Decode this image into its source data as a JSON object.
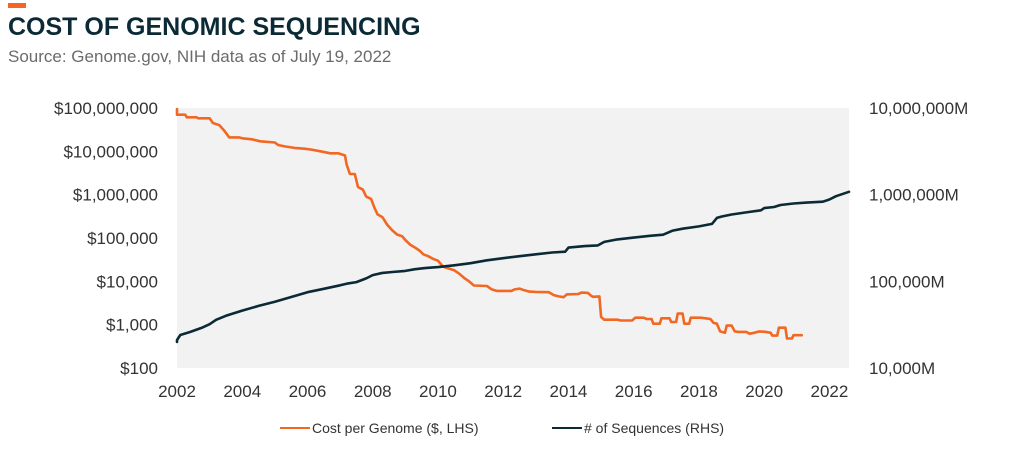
{
  "header": {
    "title": "COST OF GENOMIC SEQUENCING",
    "subtitle": "Source: Genome.gov, NIH data as of July 19, 2022"
  },
  "colors": {
    "accent": "#f26722",
    "cost_series": "#f26722",
    "sequences_series": "#0b2a35",
    "plot_background": "#f2f2f2"
  },
  "legend": {
    "placement": "bottom-center",
    "items": [
      {
        "label": "Cost per Genome ($, LHS)",
        "color": "#f26722"
      },
      {
        "label": "# of Sequences (RHS)",
        "color": "#0b2a35"
      }
    ]
  },
  "chart_data": {
    "type": "line",
    "title": "COST OF GENOMIC SEQUENCING",
    "subtitle": "Source: Genome.gov, NIH data as of July 19, 2022",
    "xlabel": "",
    "ylabel": "",
    "xlim": [
      2002,
      2022.6
    ],
    "x_ticks": [
      2002,
      2004,
      2006,
      2008,
      2010,
      2012,
      2014,
      2016,
      2018,
      2020,
      2022
    ],
    "grid": false,
    "legend_position": "bottom-center",
    "y_left": {
      "scale": "log",
      "ylim": [
        100,
        100000000
      ],
      "ticks": [
        100,
        1000,
        10000,
        100000,
        1000000,
        10000000,
        100000000
      ],
      "tick_labels": [
        "$100",
        "$1,000",
        "$10,000",
        "$100,000",
        "$1,000,000",
        "$10,000,000",
        "$100,000,000"
      ]
    },
    "y_right": {
      "scale": "log",
      "ylim": [
        10000,
        10000000
      ],
      "ticks": [
        10000,
        100000,
        1000000,
        10000000
      ],
      "tick_labels": [
        "10,000M",
        "100,000M",
        "1,000,000M",
        "10,000,000M"
      ]
    },
    "series": [
      {
        "name": "Cost per Genome ($, LHS)",
        "axis": "left",
        "color": "#f26722",
        "points": [
          [
            2001.75,
            95000000
          ],
          [
            2001.85,
            70000000
          ],
          [
            2002.25,
            70000000
          ],
          [
            2002.3,
            61000000
          ],
          [
            2002.6,
            61000000
          ],
          [
            2002.65,
            58000000
          ],
          [
            2003.0,
            58000000
          ],
          [
            2003.1,
            45000000
          ],
          [
            2003.3,
            40000000
          ],
          [
            2003.45,
            30000000
          ],
          [
            2003.6,
            21000000
          ],
          [
            2003.9,
            21000000
          ],
          [
            2004.0,
            20000000
          ],
          [
            2004.3,
            19000000
          ],
          [
            2004.55,
            17000000
          ],
          [
            2005.0,
            16000000
          ],
          [
            2005.1,
            14000000
          ],
          [
            2005.3,
            13000000
          ],
          [
            2005.6,
            12000000
          ],
          [
            2005.9,
            11500000
          ],
          [
            2006.1,
            11000000
          ],
          [
            2006.4,
            10000000
          ],
          [
            2006.7,
            9000000
          ],
          [
            2006.95,
            9000000
          ],
          [
            2007.05,
            8500000
          ],
          [
            2007.15,
            8000000
          ],
          [
            2007.2,
            5000000
          ],
          [
            2007.3,
            3000000
          ],
          [
            2007.45,
            3000000
          ],
          [
            2007.55,
            1500000
          ],
          [
            2007.7,
            1300000
          ],
          [
            2007.8,
            900000
          ],
          [
            2007.95,
            800000
          ],
          [
            2008.05,
            500000
          ],
          [
            2008.15,
            350000
          ],
          [
            2008.3,
            300000
          ],
          [
            2008.45,
            200000
          ],
          [
            2008.6,
            150000
          ],
          [
            2008.75,
            120000
          ],
          [
            2008.9,
            110000
          ],
          [
            2009.0,
            90000
          ],
          [
            2009.15,
            70000
          ],
          [
            2009.3,
            60000
          ],
          [
            2009.45,
            50000
          ],
          [
            2009.55,
            42000
          ],
          [
            2009.7,
            38000
          ],
          [
            2009.85,
            33000
          ],
          [
            2010.0,
            30000
          ],
          [
            2010.15,
            22000
          ],
          [
            2010.3,
            20000
          ],
          [
            2010.5,
            18000
          ],
          [
            2010.65,
            15000
          ],
          [
            2010.8,
            12000
          ],
          [
            2010.95,
            10000
          ],
          [
            2011.1,
            8000
          ],
          [
            2011.5,
            7800
          ],
          [
            2011.65,
            6500
          ],
          [
            2011.8,
            6000
          ],
          [
            2012.25,
            6000
          ],
          [
            2012.35,
            6500
          ],
          [
            2012.5,
            6800
          ],
          [
            2012.65,
            6200
          ],
          [
            2012.8,
            5800
          ],
          [
            2013.0,
            5700
          ],
          [
            2013.4,
            5600
          ],
          [
            2013.55,
            4800
          ],
          [
            2013.7,
            4500
          ],
          [
            2013.85,
            4300
          ],
          [
            2013.95,
            5000
          ],
          [
            2014.3,
            5100
          ],
          [
            2014.4,
            5500
          ],
          [
            2014.6,
            5400
          ],
          [
            2014.7,
            4600
          ],
          [
            2014.75,
            4400
          ],
          [
            2014.95,
            4500
          ],
          [
            2015.0,
            1500
          ],
          [
            2015.1,
            1300
          ],
          [
            2015.5,
            1300
          ],
          [
            2015.6,
            1250
          ],
          [
            2015.95,
            1250
          ],
          [
            2016.05,
            1450
          ],
          [
            2016.3,
            1450
          ],
          [
            2016.4,
            1350
          ],
          [
            2016.55,
            1350
          ],
          [
            2016.6,
            1050
          ],
          [
            2016.8,
            1050
          ],
          [
            2016.85,
            1400
          ],
          [
            2017.1,
            1400
          ],
          [
            2017.15,
            1150
          ],
          [
            2017.3,
            1150
          ],
          [
            2017.35,
            1800
          ],
          [
            2017.5,
            1800
          ],
          [
            2017.55,
            1050
          ],
          [
            2017.7,
            1050
          ],
          [
            2017.75,
            1450
          ],
          [
            2018.05,
            1450
          ],
          [
            2018.2,
            1400
          ],
          [
            2018.35,
            1350
          ],
          [
            2018.45,
            1100
          ],
          [
            2018.55,
            1050
          ],
          [
            2018.65,
            700
          ],
          [
            2018.8,
            650
          ],
          [
            2018.85,
            950
          ],
          [
            2019.0,
            950
          ],
          [
            2019.1,
            700
          ],
          [
            2019.2,
            680
          ],
          [
            2019.45,
            680
          ],
          [
            2019.55,
            620
          ],
          [
            2019.7,
            650
          ],
          [
            2019.85,
            700
          ],
          [
            2020.05,
            680
          ],
          [
            2020.2,
            650
          ],
          [
            2020.25,
            560
          ],
          [
            2020.4,
            560
          ],
          [
            2020.45,
            850
          ],
          [
            2020.65,
            850
          ],
          [
            2020.7,
            480
          ],
          [
            2020.85,
            480
          ],
          [
            2020.9,
            570
          ],
          [
            2021.15,
            570
          ]
        ]
      },
      {
        "name": "# of Sequences (RHS)",
        "axis": "right",
        "color": "#0b2a35",
        "points": [
          [
            2001.75,
            20000
          ],
          [
            2002.0,
            21000
          ],
          [
            2002.1,
            24000
          ],
          [
            2002.4,
            26000
          ],
          [
            2002.75,
            29000
          ],
          [
            2003.0,
            32000
          ],
          [
            2003.2,
            36000
          ],
          [
            2003.5,
            40000
          ],
          [
            2004.0,
            46000
          ],
          [
            2004.5,
            52000
          ],
          [
            2005.0,
            58000
          ],
          [
            2005.5,
            66000
          ],
          [
            2006.0,
            75000
          ],
          [
            2006.5,
            82000
          ],
          [
            2007.0,
            90000
          ],
          [
            2007.2,
            94000
          ],
          [
            2007.5,
            98000
          ],
          [
            2007.8,
            108000
          ],
          [
            2008.0,
            118000
          ],
          [
            2008.3,
            125000
          ],
          [
            2008.6,
            128000
          ],
          [
            2009.0,
            132000
          ],
          [
            2009.3,
            138000
          ],
          [
            2009.6,
            142000
          ],
          [
            2010.0,
            146000
          ],
          [
            2010.5,
            153000
          ],
          [
            2011.0,
            162000
          ],
          [
            2011.5,
            175000
          ],
          [
            2012.0,
            185000
          ],
          [
            2012.5,
            195000
          ],
          [
            2013.0,
            205000
          ],
          [
            2013.5,
            215000
          ],
          [
            2013.9,
            220000
          ],
          [
            2014.0,
            245000
          ],
          [
            2014.5,
            255000
          ],
          [
            2014.9,
            260000
          ],
          [
            2015.1,
            285000
          ],
          [
            2015.5,
            305000
          ],
          [
            2016.0,
            320000
          ],
          [
            2016.5,
            335000
          ],
          [
            2016.9,
            345000
          ],
          [
            2017.2,
            385000
          ],
          [
            2017.5,
            405000
          ],
          [
            2018.0,
            430000
          ],
          [
            2018.4,
            460000
          ],
          [
            2018.55,
            540000
          ],
          [
            2018.7,
            560000
          ],
          [
            2019.0,
            590000
          ],
          [
            2019.5,
            630000
          ],
          [
            2019.9,
            660000
          ],
          [
            2020.0,
            700000
          ],
          [
            2020.3,
            720000
          ],
          [
            2020.5,
            760000
          ],
          [
            2020.9,
            790000
          ],
          [
            2021.3,
            810000
          ],
          [
            2021.8,
            830000
          ],
          [
            2022.0,
            880000
          ],
          [
            2022.2,
            960000
          ],
          [
            2022.6,
            1080000
          ]
        ]
      }
    ]
  }
}
